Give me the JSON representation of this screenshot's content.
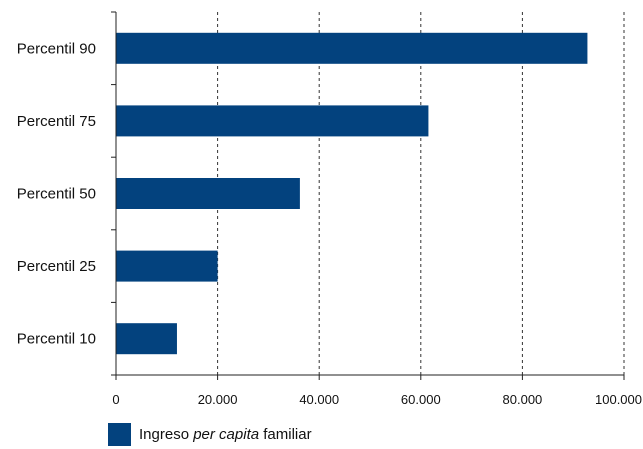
{
  "colors": {
    "bar": "#03427e",
    "axis": "#222222",
    "grid": "#333333",
    "text": "#111111"
  },
  "chart_data": {
    "type": "bar",
    "orientation": "horizontal",
    "categories": [
      "Percentil 10",
      "Percentil 25",
      "Percentil 50",
      "Percentil 75",
      "Percentil 90"
    ],
    "series": [
      {
        "name": "Ingreso per capita familiar",
        "values": [
          12000,
          20000,
          36200,
          61500,
          92800
        ]
      }
    ],
    "title": "",
    "xlabel": "",
    "ylabel": "",
    "xlim": [
      0,
      100000
    ],
    "xticks": [
      0,
      20000,
      40000,
      60000,
      80000,
      100000
    ],
    "xtick_labels": [
      "0",
      "20.000",
      "40.000",
      "60.000",
      "80.000",
      "100.000"
    ],
    "grid": "vertical dashed",
    "legend_position": "bottom-left"
  },
  "legend": {
    "prefix": "Ingreso ",
    "italic": "per capita",
    "suffix": " familiar"
  }
}
